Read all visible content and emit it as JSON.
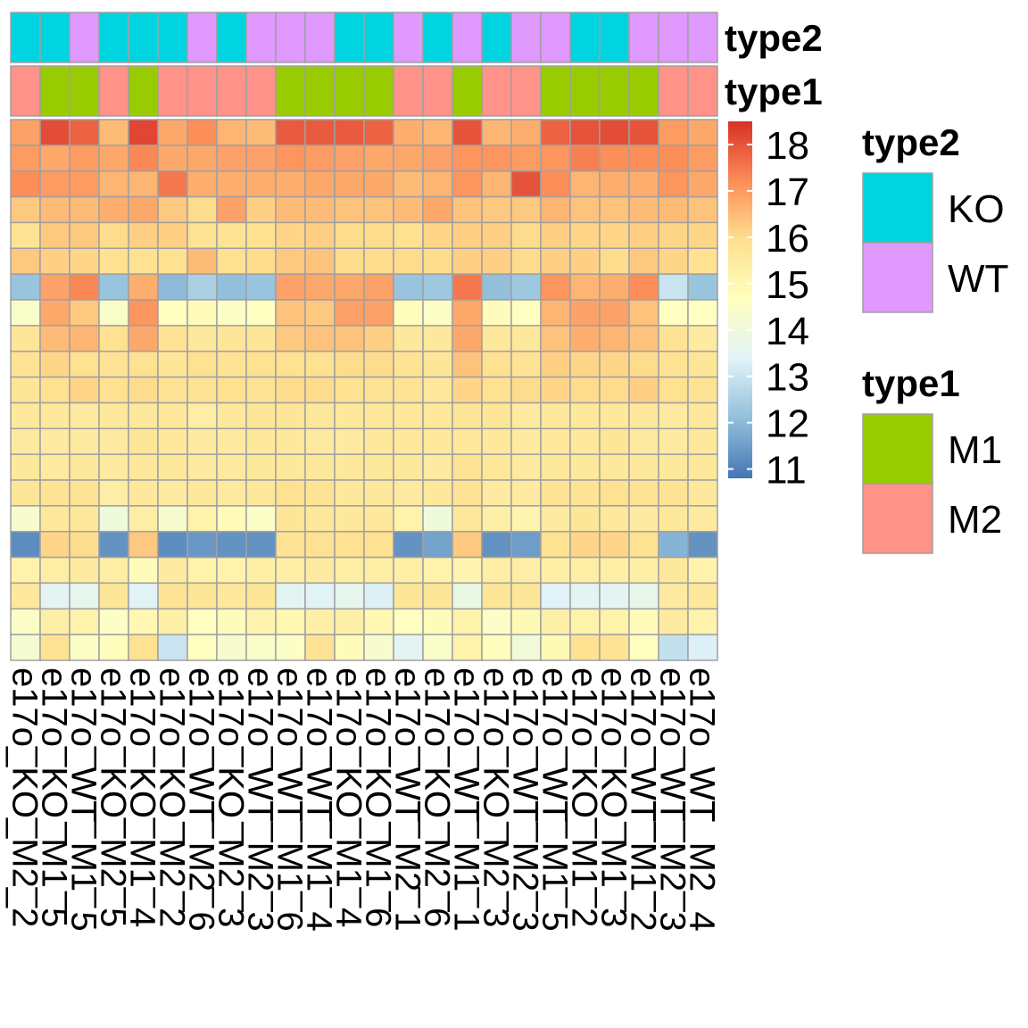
{
  "chart_data": {
    "type": "heatmap",
    "title": "",
    "columns": [
      "e17o_KO_M2_2",
      "e17o_KO_M1_5",
      "e17o_WT_M1_5",
      "e17o_KO_M2_5",
      "e17o_KO_M1_4",
      "e17o_KO_M2_2",
      "e17o_WT_M2_6",
      "e17o_KO_M2_3",
      "e17o_WT_M2_3",
      "e17o_WT_M1_6",
      "e17o_WT_M1_4",
      "e17o_KO_M1_4",
      "e17o_KO_M1_6",
      "e17o_WT_M2_1",
      "e17o_KO_M2_6",
      "e17o_WT_M1_1",
      "e17o_KO_M2_3",
      "e17o_WT_M2_3",
      "e17o_WT_M1_5",
      "e17o_KO_M1_2",
      "e17o_KO_M1_3",
      "e17o_WT_M1_2",
      "e17o_WT_M2_3",
      "e17o_WT_M2_4"
    ],
    "annotations": [
      {
        "name": "type2",
        "values": [
          "KO",
          "KO",
          "WT",
          "KO",
          "KO",
          "KO",
          "WT",
          "KO",
          "WT",
          "WT",
          "WT",
          "KO",
          "KO",
          "WT",
          "KO",
          "WT",
          "KO",
          "WT",
          "WT",
          "KO",
          "KO",
          "WT",
          "WT",
          "WT"
        ]
      },
      {
        "name": "type1",
        "values": [
          "M2",
          "M1",
          "M1",
          "M2",
          "M1",
          "M2",
          "M2",
          "M2",
          "M2",
          "M1",
          "M1",
          "M1",
          "M1",
          "M2",
          "M2",
          "M1",
          "M2",
          "M2",
          "M1",
          "M1",
          "M1",
          "M1",
          "M2",
          "M2"
        ]
      }
    ],
    "annotation_colors": {
      "type2": {
        "KO": "#00d4e0",
        "WT": "#df99ff"
      },
      "type1": {
        "M1": "#99cc00",
        "M2": "#ff9289"
      }
    },
    "color_scale": {
      "min": 10.8,
      "max": 18.5,
      "ticks": [
        18,
        17,
        16,
        15,
        14,
        13,
        12,
        11
      ],
      "stops": [
        "#4575b4",
        "#91bfdb",
        "#e0f3f8",
        "#ffffbf",
        "#fee090",
        "#fc8d59",
        "#d73027"
      ]
    },
    "values": [
      [
        16.9,
        18.1,
        17.8,
        16.5,
        18.2,
        16.8,
        17.2,
        16.6,
        16.5,
        17.9,
        17.9,
        17.9,
        17.8,
        16.7,
        16.6,
        18.0,
        16.6,
        16.7,
        17.8,
        18.0,
        18.1,
        18.0,
        17.0,
        16.8
      ],
      [
        17.0,
        16.8,
        17.0,
        16.8,
        17.3,
        16.8,
        16.8,
        16.9,
        16.9,
        17.1,
        17.0,
        16.9,
        16.8,
        16.8,
        16.9,
        17.1,
        17.1,
        17.0,
        17.1,
        17.4,
        17.2,
        17.2,
        17.2,
        17.0
      ],
      [
        17.2,
        17.0,
        17.0,
        16.6,
        16.6,
        17.5,
        16.7,
        16.7,
        16.7,
        16.7,
        16.8,
        16.8,
        16.8,
        16.5,
        16.6,
        17.1,
        16.6,
        18.0,
        17.2,
        16.6,
        16.7,
        16.7,
        17.1,
        16.8
      ],
      [
        16.3,
        16.5,
        16.5,
        16.7,
        16.8,
        16.3,
        16.0,
        16.9,
        16.2,
        16.5,
        16.5,
        16.4,
        16.4,
        16.5,
        16.8,
        16.4,
        16.3,
        16.3,
        16.6,
        16.4,
        16.4,
        16.5,
        16.5,
        16.4
      ],
      [
        15.8,
        16.3,
        16.3,
        16.0,
        16.2,
        16.2,
        15.8,
        15.8,
        15.9,
        16.1,
        16.2,
        16.0,
        16.0,
        15.9,
        16.1,
        16.2,
        16.2,
        16.0,
        16.2,
        16.1,
        16.1,
        16.2,
        16.1,
        16.1
      ],
      [
        16.3,
        16.2,
        16.1,
        15.9,
        15.9,
        15.9,
        16.5,
        15.9,
        16.0,
        16.3,
        16.4,
        16.0,
        16.0,
        16.0,
        16.0,
        16.2,
        16.2,
        16.0,
        16.2,
        16.2,
        16.0,
        16.3,
        16.1,
        15.9
      ],
      [
        12.2,
        16.9,
        17.3,
        12.2,
        16.7,
        12.0,
        12.5,
        12.1,
        12.2,
        16.9,
        16.8,
        16.8,
        16.9,
        12.2,
        12.3,
        17.5,
        12.1,
        12.3,
        17.1,
        16.6,
        16.7,
        17.2,
        13.0,
        12.2
      ],
      [
        14.4,
        16.8,
        16.3,
        14.4,
        17.1,
        14.6,
        14.8,
        14.5,
        14.6,
        16.4,
        16.3,
        16.9,
        16.9,
        14.7,
        14.5,
        16.8,
        14.8,
        14.6,
        16.6,
        16.9,
        16.9,
        16.4,
        14.6,
        14.6
      ],
      [
        15.7,
        16.5,
        16.6,
        15.9,
        16.8,
        15.8,
        15.6,
        15.7,
        15.7,
        16.3,
        16.4,
        16.4,
        16.2,
        15.6,
        15.6,
        16.8,
        15.6,
        15.6,
        16.4,
        16.7,
        16.6,
        16.4,
        15.8,
        15.5
      ],
      [
        15.8,
        16.1,
        15.9,
        15.8,
        15.9,
        15.7,
        15.9,
        15.8,
        15.9,
        15.9,
        15.9,
        16.0,
        16.0,
        15.8,
        15.7,
        16.4,
        15.9,
        15.8,
        16.2,
        16.1,
        16.1,
        16.0,
        15.8,
        15.7
      ],
      [
        15.7,
        15.9,
        16.1,
        15.9,
        16.0,
        15.8,
        15.8,
        15.9,
        15.8,
        16.0,
        16.0,
        15.9,
        15.8,
        15.8,
        15.6,
        16.1,
        15.9,
        16.0,
        16.1,
        16.0,
        16.0,
        16.2,
        15.9,
        15.8
      ],
      [
        15.6,
        15.6,
        15.5,
        15.6,
        15.6,
        15.6,
        15.4,
        15.6,
        15.7,
        15.7,
        15.6,
        15.6,
        15.6,
        15.6,
        15.6,
        15.7,
        15.7,
        15.5,
        15.6,
        15.6,
        15.6,
        15.6,
        15.5,
        15.6
      ],
      [
        15.5,
        15.5,
        15.5,
        15.5,
        15.7,
        15.6,
        15.5,
        15.5,
        15.6,
        15.6,
        15.5,
        15.5,
        15.6,
        15.6,
        15.6,
        15.6,
        15.6,
        15.5,
        15.6,
        15.6,
        15.7,
        15.5,
        15.5,
        15.6
      ],
      [
        15.6,
        15.5,
        15.6,
        15.5,
        15.6,
        15.6,
        15.5,
        15.5,
        15.6,
        15.6,
        15.6,
        15.6,
        15.6,
        15.6,
        15.5,
        15.8,
        15.6,
        15.5,
        15.6,
        15.6,
        15.6,
        15.6,
        15.6,
        15.6
      ],
      [
        15.7,
        15.8,
        15.8,
        15.4,
        15.6,
        15.5,
        15.6,
        15.5,
        15.6,
        15.9,
        15.8,
        15.6,
        15.6,
        15.5,
        15.6,
        15.8,
        15.5,
        15.5,
        15.8,
        15.8,
        15.9,
        15.8,
        15.8,
        15.6
      ],
      [
        14.3,
        15.6,
        15.6,
        14.0,
        15.4,
        14.3,
        15.2,
        14.8,
        14.5,
        15.7,
        15.6,
        15.6,
        15.6,
        15.2,
        14.0,
        15.6,
        15.3,
        15.1,
        15.5,
        15.7,
        15.6,
        15.5,
        15.6,
        15.5
      ],
      [
        11.2,
        16.1,
        16.0,
        11.3,
        16.3,
        11.2,
        11.4,
        11.3,
        11.3,
        15.8,
        15.9,
        15.9,
        15.9,
        11.3,
        11.6,
        16.3,
        11.3,
        11.5,
        15.9,
        16.1,
        16.1,
        15.9,
        11.9,
        11.3
      ],
      [
        15.2,
        15.4,
        15.5,
        15.4,
        14.8,
        15.5,
        15.2,
        15.2,
        15.3,
        15.4,
        15.5,
        15.4,
        15.4,
        15.3,
        15.2,
        15.1,
        15.4,
        15.4,
        15.3,
        15.4,
        15.3,
        15.3,
        15.6,
        15.2
      ],
      [
        15.6,
        13.5,
        13.6,
        15.7,
        13.4,
        15.8,
        15.7,
        15.6,
        15.7,
        13.5,
        13.4,
        13.6,
        13.3,
        15.7,
        15.7,
        13.8,
        15.7,
        15.7,
        13.4,
        13.5,
        13.5,
        13.7,
        15.5,
        15.6
      ],
      [
        14.5,
        15.3,
        15.2,
        14.5,
        15.0,
        15.3,
        14.6,
        14.8,
        15.1,
        15.0,
        15.3,
        15.3,
        15.0,
        14.6,
        14.8,
        15.2,
        14.5,
        14.9,
        15.3,
        15.2,
        15.2,
        14.8,
        15.5,
        15.2
      ],
      [
        14.2,
        15.8,
        14.5,
        14.7,
        15.9,
        13.0,
        14.6,
        14.3,
        14.4,
        14.5,
        15.8,
        14.8,
        14.3,
        13.5,
        14.4,
        15.2,
        14.7,
        14.1,
        14.9,
        15.9,
        15.8,
        14.6,
        12.9,
        13.3
      ]
    ]
  },
  "legend": {
    "groups": [
      {
        "title": "type2",
        "items": [
          {
            "label": "KO",
            "color": "#00d4e0"
          },
          {
            "label": "WT",
            "color": "#df99ff"
          }
        ]
      },
      {
        "title": "type1",
        "items": [
          {
            "label": "M1",
            "color": "#99cc00"
          },
          {
            "label": "M2",
            "color": "#ff9289"
          }
        ]
      }
    ]
  }
}
